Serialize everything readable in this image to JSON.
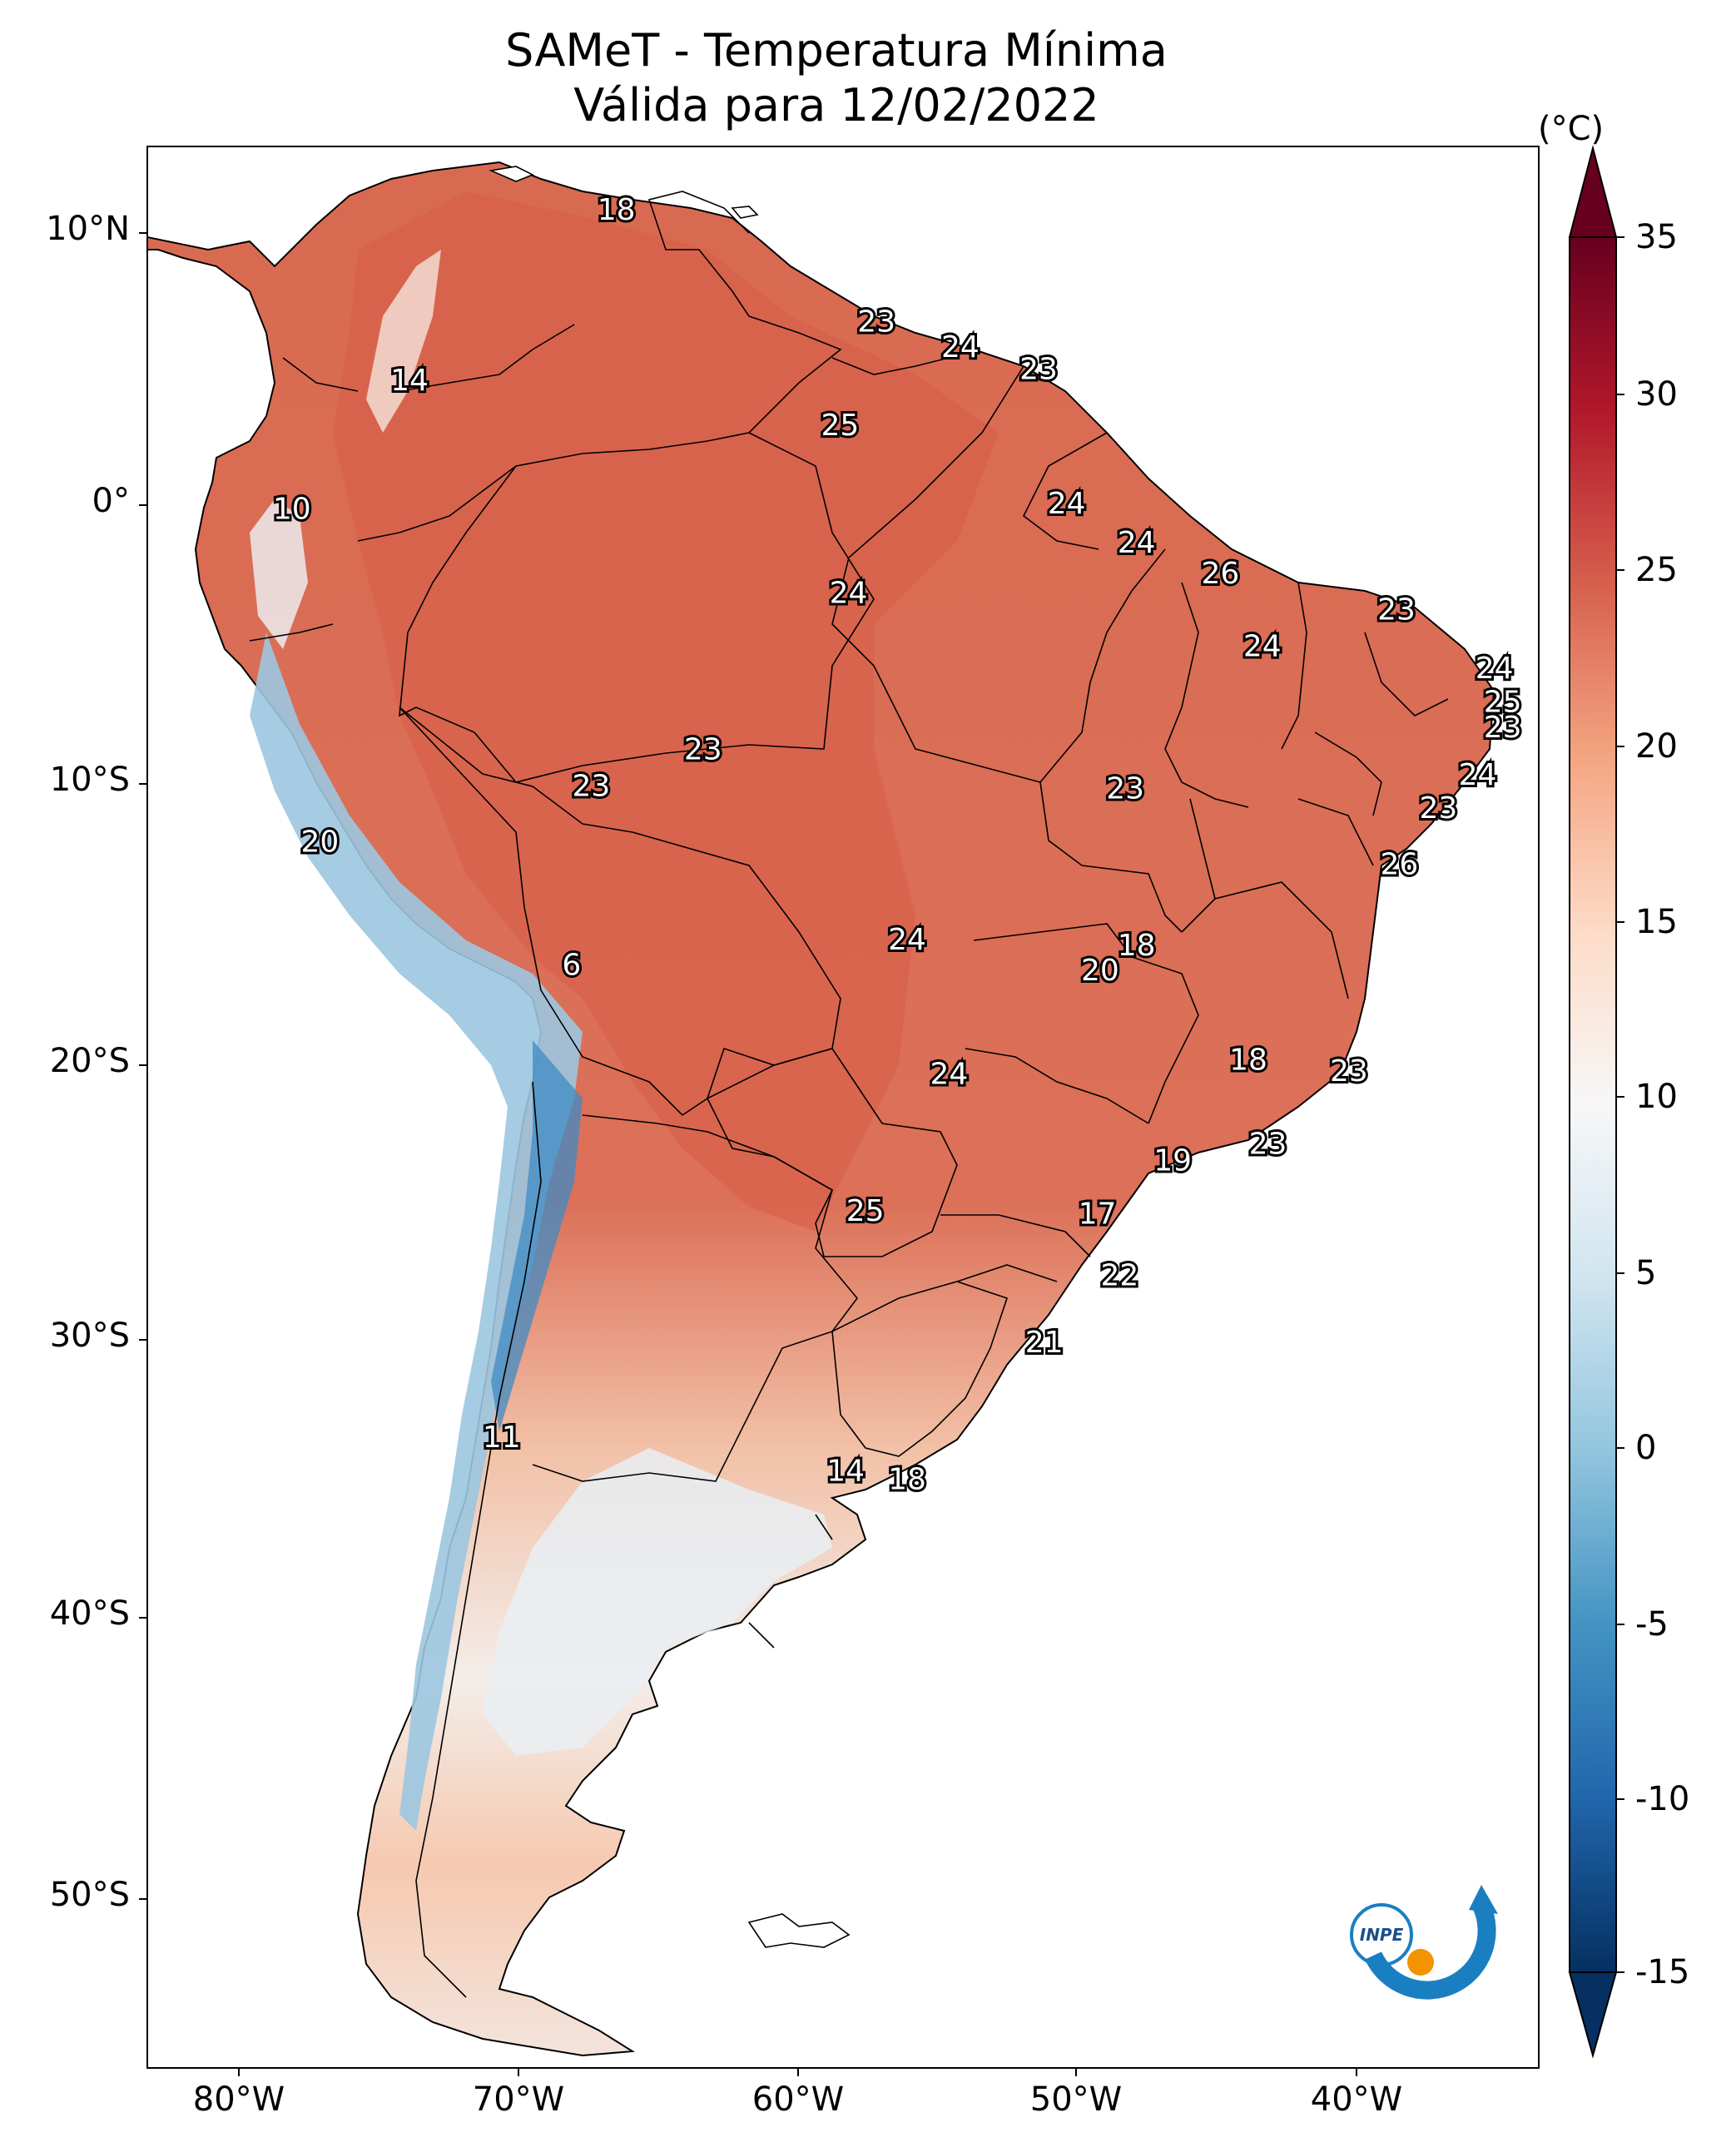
{
  "title": {
    "line1": "SAMeT - Temperatura Mínima",
    "line2": "Válida para 12/02/2022"
  },
  "axes": {
    "lat_ticks": [
      "10°N",
      "0°",
      "10°S",
      "20°S",
      "30°S",
      "40°S",
      "50°S"
    ],
    "lon_ticks": [
      "80°W",
      "70°W",
      "60°W",
      "50°W",
      "40°W"
    ]
  },
  "colorbar": {
    "unit": "(°C)",
    "ticks": [
      "35",
      "30",
      "25",
      "20",
      "15",
      "10",
      "5",
      "0",
      "-5",
      "-10",
      "-15"
    ],
    "colors": [
      "#67001f",
      "#b2182b",
      "#d6604d",
      "#f4a582",
      "#fddbc7",
      "#f7f7f7",
      "#d1e5f0",
      "#92c5de",
      "#4393c3",
      "#2166ac",
      "#053061"
    ]
  },
  "chart_data": {
    "type": "map",
    "region": "South America",
    "variable": "Temperatura Mínima",
    "unit": "°C",
    "date": "12/02/2022",
    "colorbar_range": [
      -15,
      35
    ],
    "extent": {
      "lon": [
        -83,
        -34
      ],
      "lat": [
        -56,
        13
      ]
    },
    "station_labels": [
      {
        "value": "18",
        "lon": -66.5,
        "lat": 10.5
      },
      {
        "value": "14",
        "lon": -73.9,
        "lat": 4.4
      },
      {
        "value": "10",
        "lon": -78.1,
        "lat": -0.2
      },
      {
        "value": "23",
        "lon": -57.2,
        "lat": 6.5
      },
      {
        "value": "24",
        "lon": -54.2,
        "lat": 5.6
      },
      {
        "value": "23",
        "lon": -51.4,
        "lat": 4.8
      },
      {
        "value": "25",
        "lon": -58.5,
        "lat": 2.8
      },
      {
        "value": "24",
        "lon": -50.4,
        "lat": 0.0
      },
      {
        "value": "24",
        "lon": -47.9,
        "lat": -1.4
      },
      {
        "value": "26",
        "lon": -44.9,
        "lat": -2.5
      },
      {
        "value": "23",
        "lon": -38.6,
        "lat": -3.8
      },
      {
        "value": "24",
        "lon": -58.2,
        "lat": -3.2
      },
      {
        "value": "24",
        "lon": -43.4,
        "lat": -5.1
      },
      {
        "value": "24",
        "lon": -35.1,
        "lat": -5.9
      },
      {
        "value": "25",
        "lon": -34.8,
        "lat": -7.1
      },
      {
        "value": "23",
        "lon": -34.8,
        "lat": -8.0
      },
      {
        "value": "24",
        "lon": -35.7,
        "lat": -9.7
      },
      {
        "value": "23",
        "lon": -63.4,
        "lat": -8.8
      },
      {
        "value": "23",
        "lon": -67.4,
        "lat": -10.1
      },
      {
        "value": "23",
        "lon": -48.3,
        "lat": -10.2
      },
      {
        "value": "23",
        "lon": -37.1,
        "lat": -10.9
      },
      {
        "value": "20",
        "lon": -77.1,
        "lat": -12.1
      },
      {
        "value": "26",
        "lon": -38.5,
        "lat": -12.9
      },
      {
        "value": "6",
        "lon": -68.1,
        "lat": -16.5
      },
      {
        "value": "24",
        "lon": -56.1,
        "lat": -15.6
      },
      {
        "value": "18",
        "lon": -47.9,
        "lat": -15.8
      },
      {
        "value": "20",
        "lon": -49.2,
        "lat": -16.7
      },
      {
        "value": "18",
        "lon": -43.9,
        "lat": -19.9
      },
      {
        "value": "24",
        "lon": -54.6,
        "lat": -20.4
      },
      {
        "value": "23",
        "lon": -40.3,
        "lat": -20.3
      },
      {
        "value": "23",
        "lon": -43.2,
        "lat": -22.9
      },
      {
        "value": "19",
        "lon": -46.6,
        "lat": -23.5
      },
      {
        "value": "25",
        "lon": -57.6,
        "lat": -25.3
      },
      {
        "value": "17",
        "lon": -49.3,
        "lat": -25.4
      },
      {
        "value": "22",
        "lon": -48.5,
        "lat": -27.6
      },
      {
        "value": "21",
        "lon": -51.2,
        "lat": -30.0
      },
      {
        "value": "11",
        "lon": -70.6,
        "lat": -33.4
      },
      {
        "value": "14",
        "lon": -58.3,
        "lat": -34.6
      },
      {
        "value": "18",
        "lon": -56.1,
        "lat": -34.9
      }
    ]
  }
}
